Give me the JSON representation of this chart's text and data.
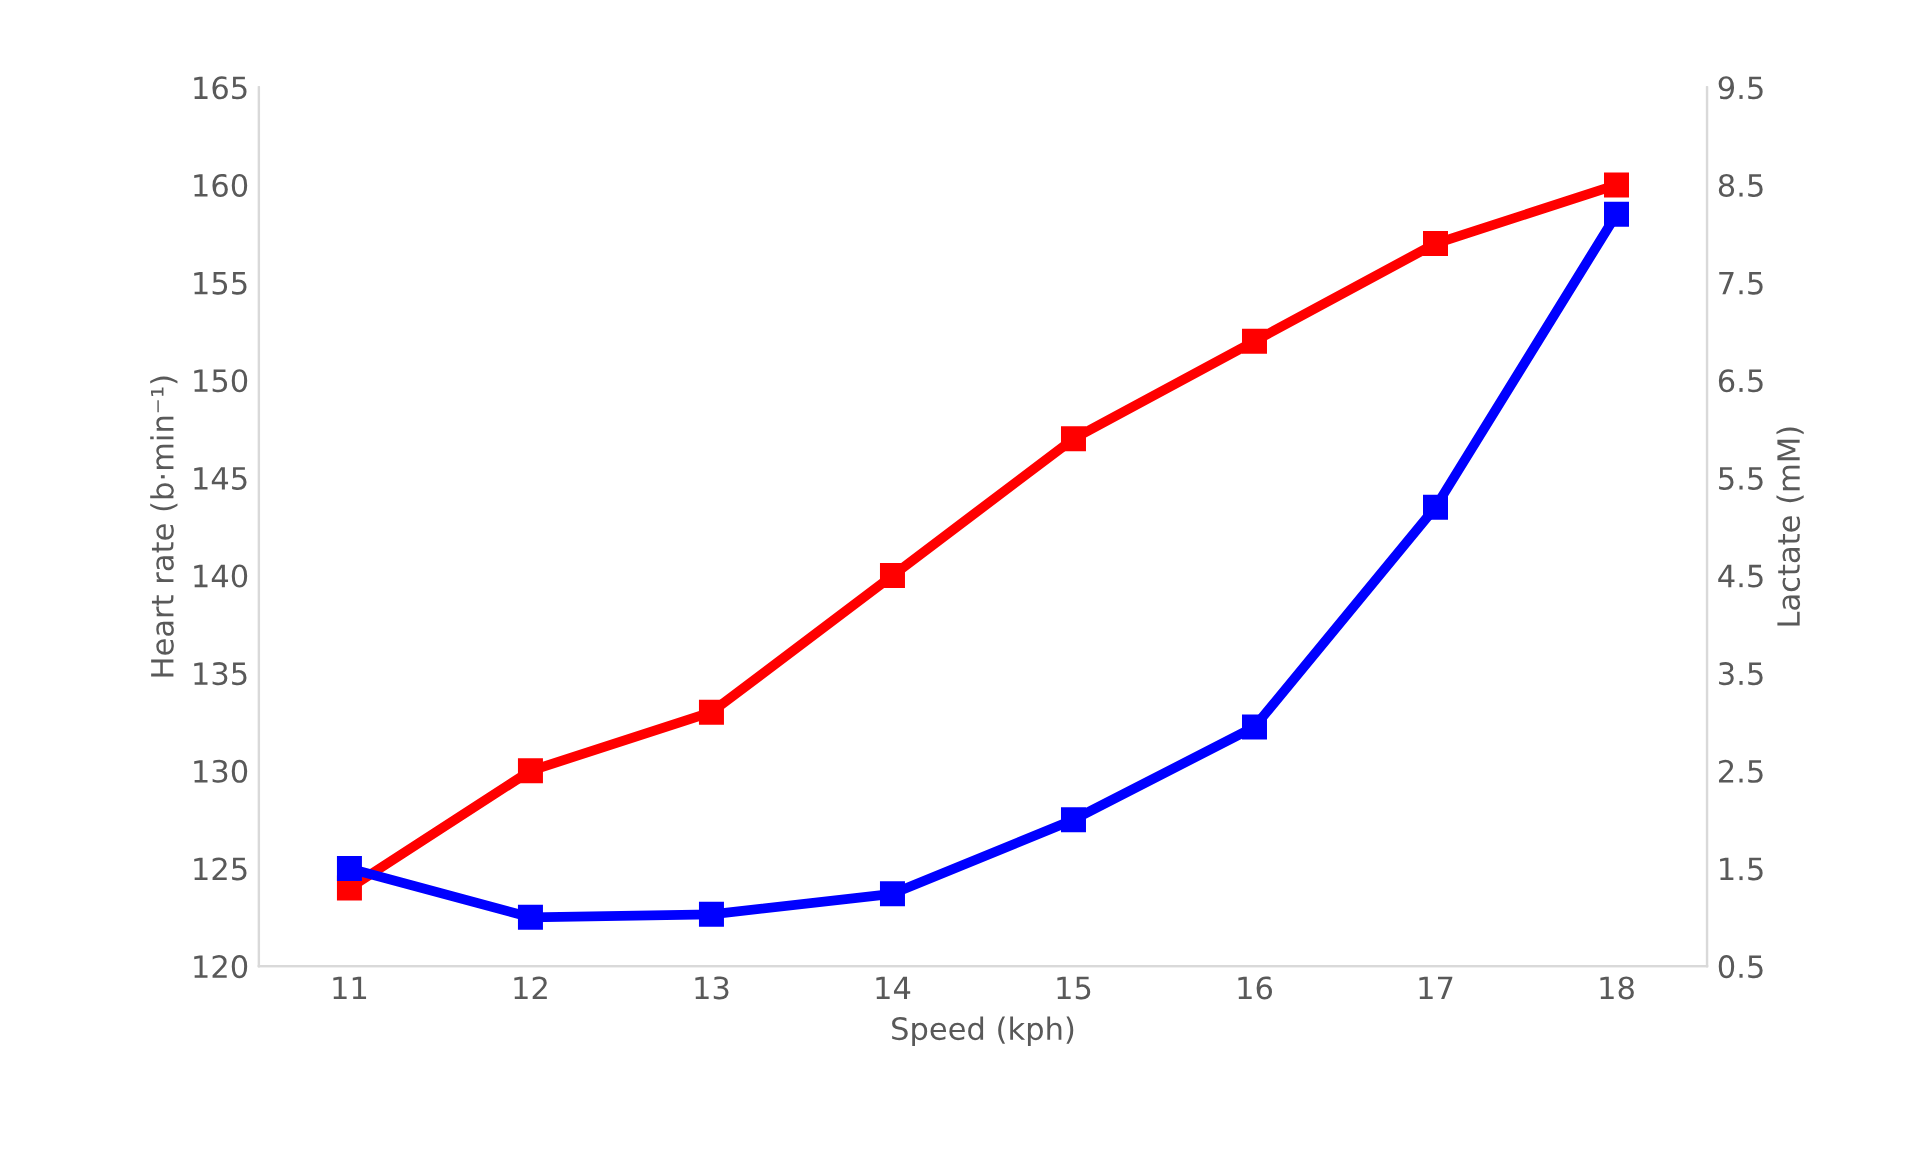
{
  "chart_data": {
    "type": "line",
    "xlabel": "Speed (kph)",
    "ylabel": "Heart rate (b·min⁻¹)",
    "y2label": "Lactate (mM)",
    "categories": [
      "11",
      "12",
      "13",
      "14",
      "15",
      "16",
      "17",
      "18"
    ],
    "series": [
      {
        "color": "#ff0000",
        "values": [
          124,
          130,
          133,
          140,
          147,
          152,
          157,
          160
        ]
      },
      {
        "color": "#0000ff",
        "axis": "y2",
        "values": [
          1.5,
          1.0,
          1.03,
          1.24,
          2.0,
          2.95,
          5.2,
          8.2
        ]
      }
    ],
    "ylim": [
      120,
      165
    ],
    "yticks": [
      120,
      125,
      130,
      135,
      140,
      145,
      150,
      155,
      160,
      165
    ],
    "y2lim": [
      0.5,
      9.5
    ],
    "y2ticks": [
      0.5,
      1.5,
      2.5,
      3.5,
      4.5,
      5.5,
      6.5,
      7.5,
      8.5,
      9.5
    ],
    "marker": "square",
    "line_style": "solid",
    "grid": false,
    "legend": false
  }
}
